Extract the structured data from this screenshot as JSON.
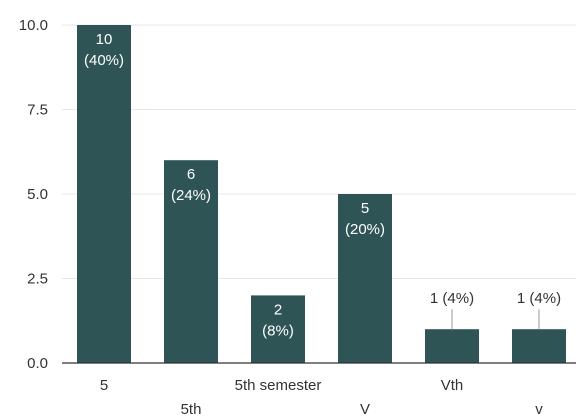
{
  "chart_data": {
    "type": "bar",
    "categories": [
      "5",
      "5th",
      "5th semester",
      "V",
      "Vth",
      "v"
    ],
    "values": [
      10,
      6,
      2,
      5,
      1,
      1
    ],
    "bar_labels": [
      [
        "10",
        "(40%)"
      ],
      [
        "6",
        "(24%)"
      ],
      [
        "2",
        "(8%)"
      ],
      [
        "5",
        "(20%)"
      ],
      [
        "1 (4%)"
      ],
      [
        "1 (4%)"
      ]
    ],
    "yticks": [
      "0.0",
      "2.5",
      "5.0",
      "7.5",
      "10.0"
    ],
    "ytick_values": [
      0,
      2.5,
      5,
      7.5,
      10
    ],
    "ylim": [
      0,
      10
    ],
    "bar_color": "#2f5455",
    "grid": true,
    "title": "",
    "xlabel": "",
    "ylabel": ""
  }
}
